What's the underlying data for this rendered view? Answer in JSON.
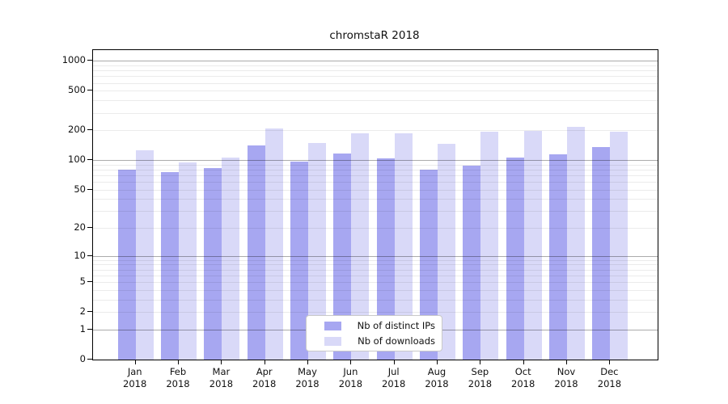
{
  "chart_data": {
    "type": "bar",
    "title": "chromstaR 2018",
    "categories": [
      "Jan",
      "Feb",
      "Mar",
      "Apr",
      "May",
      "Jun",
      "Jul",
      "Aug",
      "Sep",
      "Oct",
      "Nov",
      "Dec"
    ],
    "category_year": "2018",
    "series": [
      {
        "name": "Nb of distinct IPs",
        "color": "#a7a7f1",
        "values": [
          80,
          75,
          83,
          140,
          96,
          117,
          104,
          80,
          88,
          105,
          115,
          135
        ]
      },
      {
        "name": "Nb of downloads",
        "color": "#d9d9f8",
        "values": [
          125,
          95,
          105,
          210,
          150,
          186,
          186,
          147,
          192,
          198,
          215,
          195
        ]
      }
    ],
    "xlabel": "",
    "ylabel": "",
    "yscale": "log1p",
    "ylim": [
      0,
      1400
    ],
    "yticks": [
      0,
      1,
      2,
      5,
      10,
      20,
      50,
      100,
      200,
      500,
      1000
    ],
    "gridlines": {
      "minor": [
        2,
        3,
        4,
        5,
        6,
        7,
        8,
        9,
        20,
        30,
        40,
        50,
        60,
        70,
        80,
        90,
        200,
        300,
        400,
        500,
        600,
        700,
        800,
        900
      ],
      "major": [
        1,
        10,
        100,
        1000
      ]
    },
    "grid": "on",
    "legend_position": "lower-center-inside"
  }
}
